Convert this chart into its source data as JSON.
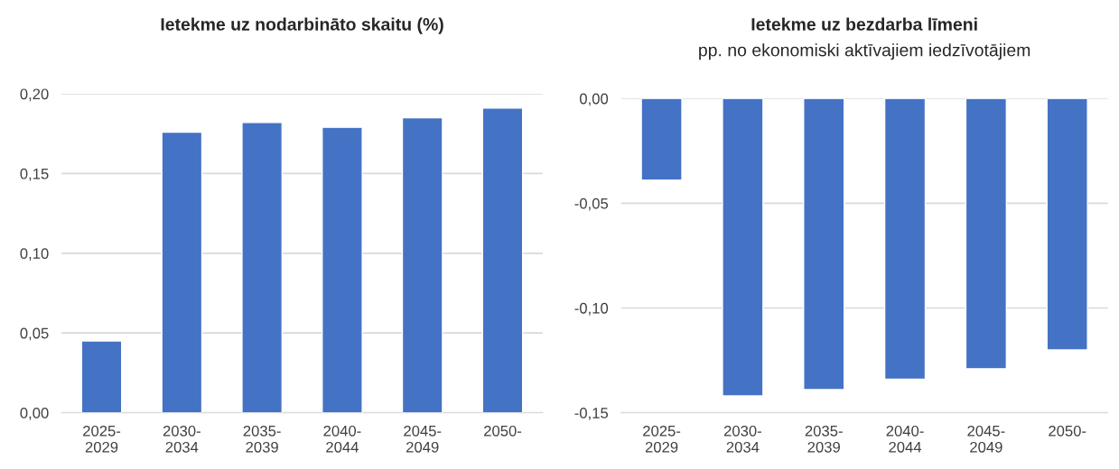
{
  "chart_data": [
    {
      "type": "bar",
      "title": "Ietekme uz nodarbināto skaitu (%)",
      "categories": [
        "2025-\n2029",
        "2030-\n2034",
        "2035-\n2039",
        "2040-\n2044",
        "2045-\n2049",
        "2050-"
      ],
      "values": [
        0.045,
        0.176,
        0.182,
        0.179,
        0.185,
        0.191
      ],
      "color": "#4472c4",
      "ylim": [
        0,
        0.2
      ],
      "yticks": [
        {
          "value": 0,
          "label": "0,00"
        },
        {
          "value": 0.05,
          "label": "0,05"
        },
        {
          "value": 0.1,
          "label": "0,10"
        },
        {
          "value": 0.15,
          "label": "0,15"
        },
        {
          "value": 0.2,
          "label": "0,20"
        }
      ],
      "grid": "y"
    },
    {
      "type": "bar",
      "title": "Ietekme uz bezdarba līmeni",
      "subtitle": "pp. no ekonomiski aktīvajiem iedzīvotājiem",
      "categories": [
        "2025-\n2029",
        "2030-\n2034",
        "2035-\n2039",
        "2040-\n2044",
        "2045-\n2049",
        "2050-"
      ],
      "values": [
        -0.039,
        -0.142,
        -0.139,
        -0.134,
        -0.129,
        -0.12
      ],
      "color": "#4472c4",
      "ylim": [
        -0.15,
        0
      ],
      "yticks": [
        {
          "value": -0.15,
          "label": "-0,15"
        },
        {
          "value": -0.1,
          "label": "-0,10"
        },
        {
          "value": -0.05,
          "label": "-0,05"
        },
        {
          "value": 0,
          "label": "0,00"
        }
      ],
      "grid": "y"
    }
  ]
}
